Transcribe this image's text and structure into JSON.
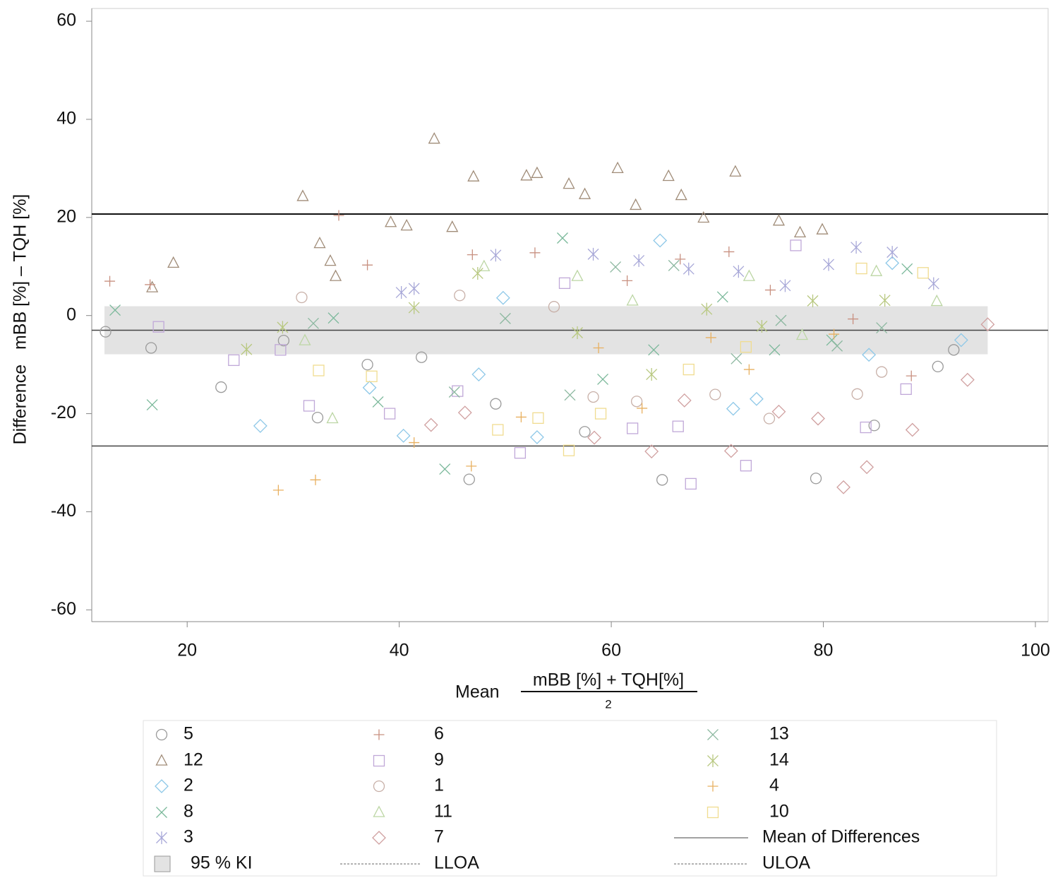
{
  "chart_data": {
    "type": "scatter",
    "y_label": "Difference   mBB [%] – TQH [%]",
    "x_label": "Mean",
    "x_label_numerator": "mBB [%] + TQH[%]",
    "x_label_denominator": "2",
    "xlim": [
      11,
      101.2
    ],
    "ylim": [
      -62.4,
      62.6
    ],
    "xticks": [
      20,
      40,
      60,
      80,
      100
    ],
    "yticks": [
      -60,
      -40,
      -20,
      0,
      20,
      40,
      60
    ],
    "mean_difference": -3.0,
    "lloa": -26.6,
    "uloa": 20.7,
    "ci": {
      "lower": -7.9,
      "upper": 1.9,
      "xlim": [
        12.2,
        95.5
      ],
      "color": "#e3e3e3"
    },
    "legend_labels": {
      "mean": "Mean of Differences",
      "ci": "95 % KI",
      "lloa": "LLOA",
      "uloa": "ULOA"
    },
    "series": [
      {
        "name": "5",
        "marker": "circle",
        "color": "#9a9a9a",
        "x": [
          12.3,
          16.6,
          23.2,
          29.1,
          32.3,
          37,
          42.1,
          46.6,
          49.1,
          57.5,
          64.8,
          79.3,
          84.8,
          90.8,
          92.3
        ],
        "values": [
          -3.3,
          -6.6,
          -14.6,
          -5.1,
          -20.8,
          -10,
          -8.5,
          -33.4,
          -18,
          -23.7,
          -33.5,
          -33.2,
          -22.4,
          -10.4,
          -7
        ]
      },
      {
        "name": "12",
        "marker": "triangle",
        "color": "#a08c78",
        "x": [
          43.3,
          47,
          52,
          53,
          60.6,
          65.4,
          71.7,
          30.9,
          18.7,
          16.7,
          32.5,
          33.5,
          34,
          45,
          56,
          57.5,
          62.3,
          66.6,
          68.7,
          75.8,
          77.8,
          79.9,
          40.7,
          39.2
        ],
        "values": [
          36,
          28.3,
          28.5,
          29,
          30,
          28.4,
          29.3,
          24.3,
          10.7,
          5.7,
          14.7,
          11.1,
          8,
          18,
          26.8,
          24.7,
          22.5,
          24.5,
          19.9,
          19.3,
          16.9,
          17.5,
          18.3,
          19
        ]
      },
      {
        "name": "2",
        "marker": "diamond",
        "color": "#8ec8e8",
        "x": [
          26.9,
          37.2,
          40.4,
          47.5,
          49.8,
          53,
          64.6,
          71.5,
          73.7,
          84.3,
          86.5,
          93
        ],
        "values": [
          -22.5,
          -14.7,
          -24.5,
          -12,
          3.6,
          -24.8,
          15.3,
          -19,
          -17,
          -8,
          10.7,
          -5
        ]
      },
      {
        "name": "8",
        "marker": "x",
        "color": "#7ab89a",
        "x": [
          13.2,
          16.7,
          33.8,
          38,
          44.3,
          55.4,
          59.2,
          64,
          70.5,
          75.4,
          80.8,
          87.9
        ],
        "values": [
          1.1,
          -18.2,
          -0.5,
          -17.6,
          -31.3,
          15.8,
          -13,
          -7,
          3.8,
          -7,
          -5,
          9.5
        ]
      },
      {
        "name": "3",
        "marker": "asterisk",
        "color": "#a8a8d8",
        "x": [
          40.2,
          41.4,
          49.1,
          58.3,
          62.6,
          67.3,
          72,
          76.4,
          80.5,
          83.1,
          86.5,
          90.4
        ],
        "values": [
          4.7,
          5.5,
          12.3,
          12.5,
          11.2,
          9.5,
          9,
          6.1,
          10.4,
          13.9,
          12.9,
          6.5
        ]
      },
      {
        "name": "6",
        "marker": "plus",
        "color": "#c89080",
        "x": [
          12.7,
          16.5,
          34.3,
          37,
          46.9,
          52.8,
          61.5,
          66.5,
          71.1,
          75,
          82.8,
          88.3
        ],
        "values": [
          7,
          6.3,
          20.4,
          10.3,
          12.4,
          12.8,
          7.1,
          11.5,
          13,
          5.2,
          -0.7,
          -12.3
        ]
      },
      {
        "name": "9",
        "marker": "square",
        "color": "#c0a8d8",
        "x": [
          17.3,
          24.4,
          28.8,
          31.5,
          39.1,
          45.5,
          51.4,
          55.6,
          62,
          66.3,
          67.5,
          72.7,
          77.4,
          84,
          87.8
        ],
        "values": [
          -2.3,
          -9.1,
          -7,
          -18.4,
          -20,
          -15.4,
          -28,
          6.6,
          -23,
          -22.6,
          -34.3,
          -30.6,
          14.3,
          -22.8,
          -15
        ]
      },
      {
        "name": "1",
        "marker": "circle",
        "color": "#c8b0a8",
        "x": [
          30.8,
          45.7,
          54.6,
          58.3,
          62.4,
          69.8,
          74.9,
          83.2,
          85.5
        ],
        "values": [
          3.7,
          4.1,
          1.8,
          -16.6,
          -17.5,
          -16.1,
          -21,
          -16,
          -11.5
        ]
      },
      {
        "name": "11",
        "marker": "triangle",
        "color": "#bcd6a4",
        "x": [
          31.1,
          33.7,
          48,
          56.8,
          62,
          73,
          78,
          85,
          90.7
        ],
        "values": [
          -5.1,
          -21,
          10,
          8,
          3,
          8,
          -4,
          9,
          2.9
        ]
      },
      {
        "name": "7",
        "marker": "diamond",
        "color": "#d0a0a0",
        "x": [
          43,
          46.2,
          58.4,
          63.8,
          66.9,
          71.3,
          75.8,
          79.5,
          81.9,
          84.1,
          88.4,
          93.6,
          95.5
        ],
        "values": [
          -22.3,
          -19.8,
          -24.9,
          -27.7,
          -17.3,
          -27.6,
          -19.6,
          -21,
          -35,
          -30.9,
          -23.3,
          -13.1,
          -1.8
        ]
      },
      {
        "name": "13",
        "marker": "x",
        "color": "#8cb8a0",
        "x": [
          31.9,
          45.2,
          50,
          56.1,
          60.4,
          65.9,
          71.8,
          76,
          81.3,
          85.5
        ],
        "values": [
          -1.6,
          -15.6,
          -0.6,
          -16.2,
          9.9,
          10.2,
          -8.8,
          -1,
          -6.2,
          -2.5
        ]
      },
      {
        "name": "14",
        "marker": "asterisk",
        "color": "#b8c880",
        "x": [
          25.6,
          29,
          41.4,
          47.4,
          56.8,
          63.8,
          69,
          74.2,
          79,
          85.8
        ],
        "values": [
          -6.9,
          -2.4,
          1.6,
          8.6,
          -3.5,
          -12,
          1.3,
          -2.2,
          3,
          3.1
        ]
      },
      {
        "name": "4",
        "marker": "plus",
        "color": "#e8b060",
        "x": [
          28.6,
          32.1,
          41.4,
          46.8,
          51.5,
          58.8,
          62.9,
          69.4,
          73,
          81
        ],
        "values": [
          -35.6,
          -33.5,
          -25.9,
          -30.7,
          -20.7,
          -6.6,
          -18.9,
          -4.5,
          -11,
          -3.8
        ]
      },
      {
        "name": "10",
        "marker": "square",
        "color": "#f0dc90",
        "x": [
          32.4,
          37.4,
          49.3,
          53.1,
          56,
          59,
          67.3,
          72.7,
          83.6,
          89.4
        ],
        "values": [
          -11.2,
          -12.4,
          -23.3,
          -20.9,
          -27.5,
          -20,
          -11,
          -6.4,
          9.6,
          8.7
        ]
      }
    ]
  }
}
